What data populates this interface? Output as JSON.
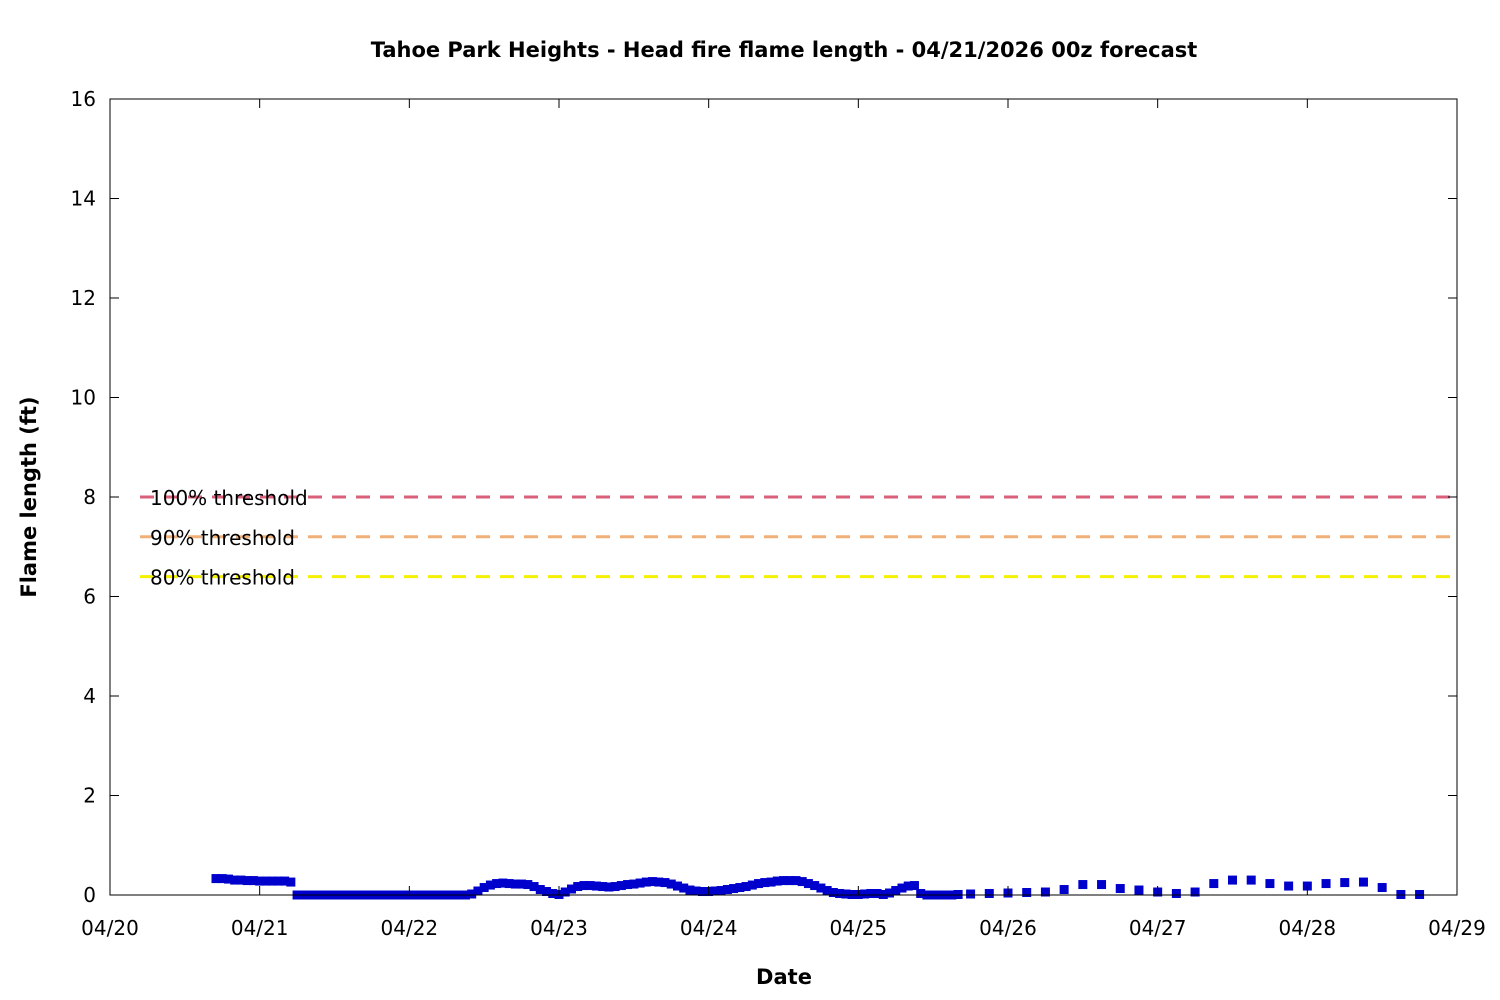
{
  "chart_data": {
    "type": "scatter",
    "title": "Tahoe Park Heights - Head fire flame length - 04/21/2026 00z forecast",
    "xlabel": "Date",
    "ylabel": "Flame length (ft)",
    "x_type": "date",
    "xlim": [
      "2026-04-20T00:00",
      "2026-04-29T00:00"
    ],
    "x_ticks": [
      "04/20",
      "04/21",
      "04/22",
      "04/23",
      "04/24",
      "04/25",
      "04/26",
      "04/27",
      "04/28",
      "04/29"
    ],
    "ylim": [
      0,
      16
    ],
    "y_ticks": [
      "0",
      "2",
      "4",
      "6",
      "8",
      "10",
      "12",
      "14",
      "16"
    ],
    "grid": false,
    "colors": {
      "series": "#0000cc",
      "threshold_100": "#d95f7a",
      "threshold_90": "#f0b078",
      "threshold_80": "#f5f000"
    },
    "thresholds": [
      {
        "label": "100% threshold",
        "value": 8.0,
        "color": "#d95f7a"
      },
      {
        "label": "90% threshold",
        "value": 7.2,
        "color": "#f0b078"
      },
      {
        "label": "80% threshold",
        "value": 6.4,
        "color": "#f5f000"
      }
    ],
    "series": [
      {
        "color": "#0000cc",
        "points": [
          [
            "2026-04-20T17:00",
            0.33
          ],
          [
            "2026-04-20T18:00",
            0.33
          ],
          [
            "2026-04-20T19:00",
            0.32
          ],
          [
            "2026-04-20T20:00",
            0.3
          ],
          [
            "2026-04-20T21:00",
            0.3
          ],
          [
            "2026-04-20T22:00",
            0.29
          ],
          [
            "2026-04-20T23:00",
            0.29
          ],
          [
            "2026-04-21T00:00",
            0.28
          ],
          [
            "2026-04-21T01:00",
            0.28
          ],
          [
            "2026-04-21T02:00",
            0.28
          ],
          [
            "2026-04-21T03:00",
            0.28
          ],
          [
            "2026-04-21T04:00",
            0.28
          ],
          [
            "2026-04-21T05:00",
            0.26
          ],
          [
            "2026-04-21T06:00",
            0.0
          ],
          [
            "2026-04-21T07:00",
            0.0
          ],
          [
            "2026-04-21T08:00",
            0.0
          ],
          [
            "2026-04-21T09:00",
            0.0
          ],
          [
            "2026-04-21T10:00",
            0.0
          ],
          [
            "2026-04-21T11:00",
            0.0
          ],
          [
            "2026-04-21T12:00",
            0.0
          ],
          [
            "2026-04-21T13:00",
            0.0
          ],
          [
            "2026-04-21T14:00",
            0.0
          ],
          [
            "2026-04-21T15:00",
            0.0
          ],
          [
            "2026-04-21T16:00",
            0.0
          ],
          [
            "2026-04-21T17:00",
            0.0
          ],
          [
            "2026-04-21T18:00",
            0.0
          ],
          [
            "2026-04-21T19:00",
            0.0
          ],
          [
            "2026-04-21T20:00",
            0.0
          ],
          [
            "2026-04-21T21:00",
            0.0
          ],
          [
            "2026-04-21T22:00",
            0.0
          ],
          [
            "2026-04-21T23:00",
            0.0
          ],
          [
            "2026-04-22T00:00",
            0.0
          ],
          [
            "2026-04-22T01:00",
            0.0
          ],
          [
            "2026-04-22T02:00",
            0.0
          ],
          [
            "2026-04-22T03:00",
            0.0
          ],
          [
            "2026-04-22T04:00",
            0.0
          ],
          [
            "2026-04-22T05:00",
            0.0
          ],
          [
            "2026-04-22T06:00",
            0.0
          ],
          [
            "2026-04-22T07:00",
            0.0
          ],
          [
            "2026-04-22T08:00",
            0.0
          ],
          [
            "2026-04-22T09:00",
            0.0
          ],
          [
            "2026-04-22T10:00",
            0.02
          ],
          [
            "2026-04-22T11:00",
            0.08
          ],
          [
            "2026-04-22T12:00",
            0.15
          ],
          [
            "2026-04-22T13:00",
            0.2
          ],
          [
            "2026-04-22T14:00",
            0.23
          ],
          [
            "2026-04-22T15:00",
            0.24
          ],
          [
            "2026-04-22T16:00",
            0.23
          ],
          [
            "2026-04-22T17:00",
            0.22
          ],
          [
            "2026-04-22T18:00",
            0.22
          ],
          [
            "2026-04-22T19:00",
            0.21
          ],
          [
            "2026-04-22T20:00",
            0.17
          ],
          [
            "2026-04-22T21:00",
            0.11
          ],
          [
            "2026-04-22T22:00",
            0.07
          ],
          [
            "2026-04-22T23:00",
            0.03
          ],
          [
            "2026-04-23T00:00",
            0.01
          ],
          [
            "2026-04-23T01:00",
            0.06
          ],
          [
            "2026-04-23T02:00",
            0.12
          ],
          [
            "2026-04-23T03:00",
            0.17
          ],
          [
            "2026-04-23T04:00",
            0.19
          ],
          [
            "2026-04-23T05:00",
            0.19
          ],
          [
            "2026-04-23T06:00",
            0.18
          ],
          [
            "2026-04-23T07:00",
            0.17
          ],
          [
            "2026-04-23T08:00",
            0.16
          ],
          [
            "2026-04-23T09:00",
            0.17
          ],
          [
            "2026-04-23T10:00",
            0.19
          ],
          [
            "2026-04-23T11:00",
            0.21
          ],
          [
            "2026-04-23T12:00",
            0.22
          ],
          [
            "2026-04-23T13:00",
            0.24
          ],
          [
            "2026-04-23T14:00",
            0.26
          ],
          [
            "2026-04-23T15:00",
            0.27
          ],
          [
            "2026-04-23T16:00",
            0.26
          ],
          [
            "2026-04-23T17:00",
            0.25
          ],
          [
            "2026-04-23T18:00",
            0.22
          ],
          [
            "2026-04-23T19:00",
            0.18
          ],
          [
            "2026-04-23T20:00",
            0.14
          ],
          [
            "2026-04-23T21:00",
            0.1
          ],
          [
            "2026-04-23T22:00",
            0.08
          ],
          [
            "2026-04-23T23:00",
            0.07
          ],
          [
            "2026-04-24T00:00",
            0.07
          ],
          [
            "2026-04-24T01:00",
            0.08
          ],
          [
            "2026-04-24T02:00",
            0.09
          ],
          [
            "2026-04-24T03:00",
            0.11
          ],
          [
            "2026-04-24T04:00",
            0.13
          ],
          [
            "2026-04-24T05:00",
            0.15
          ],
          [
            "2026-04-24T06:00",
            0.17
          ],
          [
            "2026-04-24T07:00",
            0.2
          ],
          [
            "2026-04-24T08:00",
            0.23
          ],
          [
            "2026-04-24T09:00",
            0.25
          ],
          [
            "2026-04-24T10:00",
            0.26
          ],
          [
            "2026-04-24T11:00",
            0.28
          ],
          [
            "2026-04-24T12:00",
            0.29
          ],
          [
            "2026-04-24T13:00",
            0.29
          ],
          [
            "2026-04-24T14:00",
            0.29
          ],
          [
            "2026-04-24T15:00",
            0.27
          ],
          [
            "2026-04-24T16:00",
            0.23
          ],
          [
            "2026-04-24T17:00",
            0.19
          ],
          [
            "2026-04-24T18:00",
            0.14
          ],
          [
            "2026-04-24T19:00",
            0.09
          ],
          [
            "2026-04-24T20:00",
            0.05
          ],
          [
            "2026-04-24T21:00",
            0.03
          ],
          [
            "2026-04-24T22:00",
            0.02
          ],
          [
            "2026-04-24T23:00",
            0.01
          ],
          [
            "2026-04-25T00:00",
            0.01
          ],
          [
            "2026-04-25T01:00",
            0.02
          ],
          [
            "2026-04-25T02:00",
            0.03
          ],
          [
            "2026-04-25T03:00",
            0.03
          ],
          [
            "2026-04-25T04:00",
            0.01
          ],
          [
            "2026-04-25T05:00",
            0.04
          ],
          [
            "2026-04-25T06:00",
            0.09
          ],
          [
            "2026-04-25T07:00",
            0.14
          ],
          [
            "2026-04-25T08:00",
            0.18
          ],
          [
            "2026-04-25T09:00",
            0.19
          ],
          [
            "2026-04-25T10:00",
            0.03
          ],
          [
            "2026-04-25T11:00",
            0.0
          ],
          [
            "2026-04-25T12:00",
            0.0
          ],
          [
            "2026-04-25T13:00",
            0.0
          ],
          [
            "2026-04-25T14:00",
            0.0
          ],
          [
            "2026-04-25T15:00",
            0.0
          ],
          [
            "2026-04-25T16:00",
            0.01
          ],
          [
            "2026-04-25T18:00",
            0.02
          ],
          [
            "2026-04-25T21:00",
            0.03
          ],
          [
            "2026-04-26T00:00",
            0.04
          ],
          [
            "2026-04-26T03:00",
            0.05
          ],
          [
            "2026-04-26T06:00",
            0.06
          ],
          [
            "2026-04-26T09:00",
            0.11
          ],
          [
            "2026-04-26T12:00",
            0.21
          ],
          [
            "2026-04-26T15:00",
            0.21
          ],
          [
            "2026-04-26T18:00",
            0.13
          ],
          [
            "2026-04-26T21:00",
            0.1
          ],
          [
            "2026-04-27T00:00",
            0.06
          ],
          [
            "2026-04-27T03:00",
            0.03
          ],
          [
            "2026-04-27T06:00",
            0.06
          ],
          [
            "2026-04-27T09:00",
            0.23
          ],
          [
            "2026-04-27T12:00",
            0.3
          ],
          [
            "2026-04-27T15:00",
            0.3
          ],
          [
            "2026-04-27T18:00",
            0.23
          ],
          [
            "2026-04-27T21:00",
            0.18
          ],
          [
            "2026-04-28T00:00",
            0.18
          ],
          [
            "2026-04-28T03:00",
            0.23
          ],
          [
            "2026-04-28T06:00",
            0.25
          ],
          [
            "2026-04-28T09:00",
            0.26
          ],
          [
            "2026-04-28T12:00",
            0.15
          ],
          [
            "2026-04-28T15:00",
            0.01
          ],
          [
            "2026-04-28T18:00",
            0.01
          ]
        ]
      }
    ]
  }
}
